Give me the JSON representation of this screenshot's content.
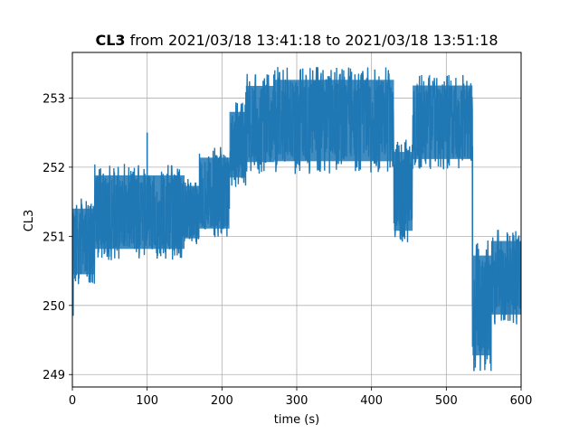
{
  "chart_data": {
    "type": "line",
    "title_bold": "CL3",
    "title_rest": " from 2021/03/18 13:41:18 to 2021/03/18 13:51:18",
    "xlabel": "time (s)",
    "ylabel": "CL3",
    "xlim": [
      0,
      600
    ],
    "ylim": [
      248.82,
      253.66
    ],
    "xticks": [
      0,
      100,
      200,
      300,
      400,
      500,
      600
    ],
    "yticks": [
      249,
      250,
      251,
      252,
      253
    ],
    "grid": true,
    "series": [
      {
        "color": "#1f77b4",
        "segments": [
          {
            "x0": 0,
            "x1": 30,
            "min": 250.3,
            "max": 251.55
          },
          {
            "x0": 30,
            "x1": 150,
            "min": 250.65,
            "max": 252.05
          },
          {
            "x0": 150,
            "x1": 170,
            "min": 250.85,
            "max": 251.85
          },
          {
            "x0": 170,
            "x1": 210,
            "min": 250.95,
            "max": 252.3
          },
          {
            "x0": 210,
            "x1": 232,
            "min": 251.7,
            "max": 252.95
          },
          {
            "x0": 232,
            "x1": 270,
            "min": 251.9,
            "max": 253.35
          },
          {
            "x0": 270,
            "x1": 430,
            "min": 251.9,
            "max": 253.45
          },
          {
            "x0": 430,
            "x1": 455,
            "min": 250.9,
            "max": 252.4
          },
          {
            "x0": 455,
            "x1": 535,
            "min": 251.95,
            "max": 253.35
          },
          {
            "x0": 535,
            "x1": 560,
            "min": 249.05,
            "max": 250.95
          },
          {
            "x0": 560,
            "x1": 600,
            "min": 249.7,
            "max": 251.1
          }
        ],
        "spikes": [
          {
            "x": 1,
            "y": 249.85
          },
          {
            "x": 100,
            "y": 252.5
          },
          {
            "x": 537,
            "y": 249.05
          },
          {
            "x": 535,
            "y": 252.3
          }
        ]
      }
    ]
  }
}
